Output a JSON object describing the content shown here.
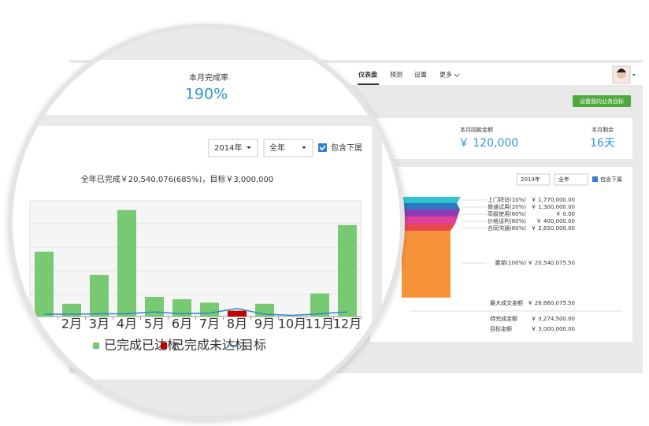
{
  "nav": {
    "items": [
      "仪表盘",
      "预测",
      "设置",
      "更多"
    ],
    "goal_button": "设置我的业务目标"
  },
  "kpis": [
    {
      "label": "本月完成率",
      "value": "190%"
    },
    {
      "label": "本月回款金额",
      "value": "￥ 120,000"
    },
    {
      "label": "本月剩余",
      "value": "16天"
    }
  ],
  "filters": {
    "year": "2014年",
    "period": "全年",
    "include_sub": "包含下属"
  },
  "funnel": {
    "stages": [
      {
        "label": "上门拜访(10%)",
        "amount": "￥ 1,770,000.00"
      },
      {
        "label": "普通试用(20%)",
        "amount": "￥ 1,300,000.00"
      },
      {
        "label": "高级使用(60%)",
        "amount": "￥ 0.00"
      },
      {
        "label": "价格谈判(80%)",
        "amount": "￥ 400,000.00"
      },
      {
        "label": "合同沟通(80%)",
        "amount": "￥ 2,650,000.00"
      },
      {
        "label": "赢单(100%)",
        "amount": "￥ 20,540,075.50"
      }
    ],
    "totals": [
      {
        "label": "最大成交金额",
        "amount": "￥ 26,660,075.50"
      },
      {
        "label": "待完成金额",
        "amount": "￥ 3,274,500.00"
      },
      {
        "label": "目标金额",
        "amount": "￥ 3,000,000.00"
      }
    ]
  },
  "chart_data": {
    "type": "bar",
    "subtitle": "全年已完成￥20,540,076(685%)，目标￥3,000,000",
    "categories": [
      null,
      "2月",
      "3月",
      "4月",
      "5月",
      "6月",
      "7月",
      "8月",
      "9月",
      "10月",
      "11月",
      "12月"
    ],
    "series": [
      {
        "name": "已完成已达标",
        "color": "#77c972",
        "values": [
          2.8,
          0.55,
          1.8,
          4.6,
          0.85,
          0.75,
          0.6,
          null,
          0.55,
          null,
          1.0,
          3.95
        ]
      },
      {
        "name": "已完成未达标",
        "color": "#c00000",
        "values": [
          null,
          null,
          null,
          null,
          null,
          null,
          null,
          0.25,
          null,
          null,
          null,
          null
        ]
      },
      {
        "name": "目标",
        "color": "#2f86c8",
        "type": "line",
        "values": [
          0.1,
          0.1,
          0.12,
          0.12,
          0.2,
          0.12,
          0.15,
          0.35,
          0.1,
          0.05,
          0.12,
          0.2
        ]
      }
    ],
    "ylim": [
      0,
      5
    ]
  }
}
